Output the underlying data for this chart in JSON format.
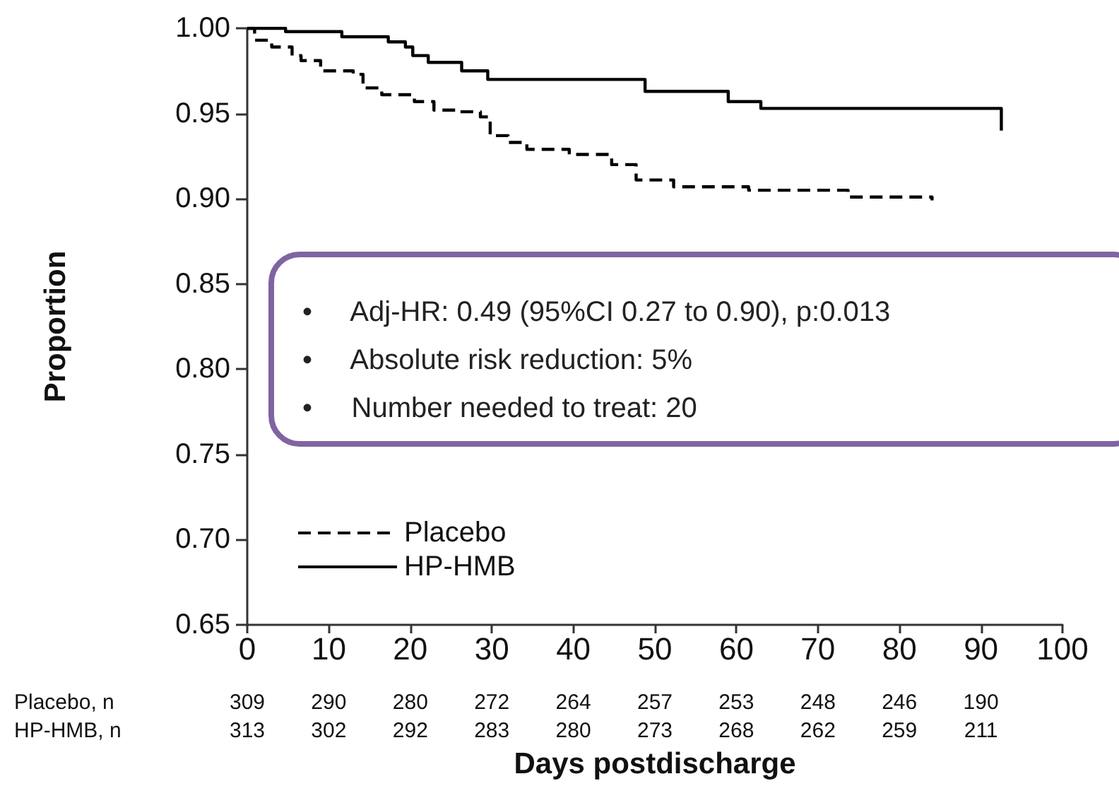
{
  "chart_data": {
    "type": "step",
    "xlabel": "Days postdischarge",
    "ylabel": "Proportion",
    "xlim": [
      0,
      100
    ],
    "xticks": [
      0,
      10,
      20,
      30,
      40,
      50,
      60,
      70,
      80,
      90,
      100
    ],
    "ylim": [
      0.65,
      1.0
    ],
    "yticks": [
      {
        "value": 0.65,
        "label": "0.65"
      },
      {
        "value": 0.7,
        "label": "0.70"
      },
      {
        "value": 0.75,
        "label": "0.75"
      },
      {
        "value": 0.8,
        "label": "0.80"
      },
      {
        "value": 0.85,
        "label": "0.85"
      },
      {
        "value": 0.9,
        "label": "0.90"
      },
      {
        "value": 0.95,
        "label": "0.95"
      },
      {
        "value": 1.0,
        "label": "1.00"
      }
    ],
    "grid": false,
    "legend": "bottom left",
    "marker": "none",
    "series": [
      {
        "name": "Placebo",
        "color": "#000000",
        "line_style": "dashed",
        "x": [
          0,
          0.9,
          3,
          5.5,
          6.6,
          9,
          13,
          14.2,
          16.5,
          20.5,
          22.9,
          25.6,
          28.6,
          29.8,
          32,
          34.3,
          39.5,
          44.7,
          47.7,
          52.3,
          61.5,
          73.7,
          84
        ],
        "values": [
          1.0,
          0.993,
          0.989,
          0.984,
          0.981,
          0.975,
          0.973,
          0.965,
          0.961,
          0.957,
          0.952,
          0.951,
          0.948,
          0.937,
          0.933,
          0.929,
          0.926,
          0.92,
          0.911,
          0.907,
          0.905,
          0.901,
          0.899
        ]
      },
      {
        "name": "HP-HMB",
        "color": "#000000",
        "line_style": "solid",
        "x": [
          0,
          4.7,
          11.6,
          17.3,
          19.4,
          20.3,
          22.2,
          26.3,
          29.5,
          48.8,
          59,
          63,
          92.5,
          92.5
        ],
        "values": [
          1.0,
          0.998,
          0.995,
          0.992,
          0.989,
          0.984,
          0.98,
          0.975,
          0.97,
          0.963,
          0.957,
          0.953,
          0.953,
          0.94
        ]
      }
    ],
    "annotations": [
      "•     Adj-HR: 0.49 (95%CI 0.27 to 0.90), p:0.013",
      "•     Absolute risk reduction: 5%",
      "•     Number needed to treat: 20",
      "Placebo, n",
      "309",
      "290",
      "280",
      "272",
      "264",
      "257",
      "253",
      "248",
      "246",
      "190",
      "HP-HMB, n",
      "313",
      "302",
      "292",
      "283",
      "280",
      "273",
      "268",
      "262",
      "259",
      "211"
    ]
  }
}
